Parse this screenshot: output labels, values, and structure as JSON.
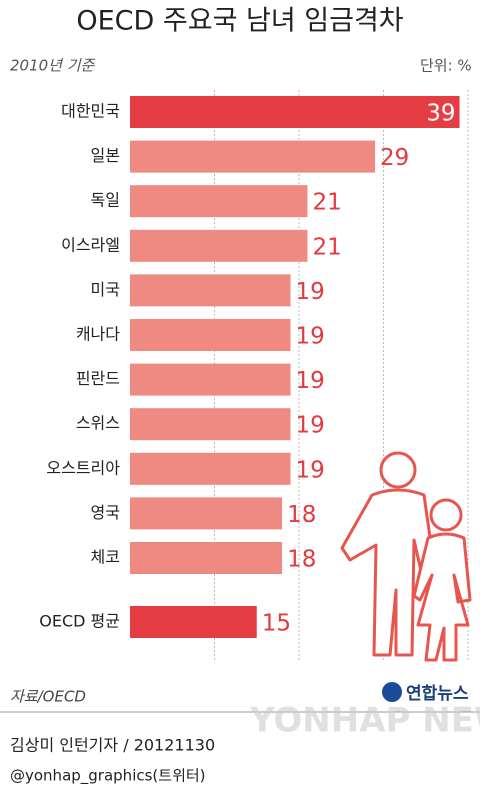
{
  "chart_data": {
    "type": "bar",
    "orientation": "horizontal",
    "title": "OECD 주요국 남녀 임금격차",
    "subtitle": "2010년 기준",
    "unit": "단위: %",
    "categories": [
      "대한민국",
      "일본",
      "독일",
      "이스라엘",
      "미국",
      "캐나다",
      "핀란드",
      "스위스",
      "오스트리아",
      "영국",
      "체코",
      "OECD 평균"
    ],
    "values": [
      39,
      29,
      21,
      21,
      19,
      19,
      19,
      19,
      19,
      18,
      18,
      15
    ],
    "colors": [
      "#e43d44",
      "#ee8a82",
      "#ee8a82",
      "#ee8a82",
      "#ee8a82",
      "#ee8a82",
      "#ee8a82",
      "#ee8a82",
      "#ee8a82",
      "#ee8a82",
      "#ee8a82",
      "#e43d44"
    ],
    "xlim": [
      0,
      40
    ],
    "xticks": [
      10,
      20,
      30,
      40
    ],
    "grid": true,
    "source": "자료/OECD",
    "logo": "연합뉴스",
    "watermark": "YONHAP NEWS",
    "credit": "김상미 인턴기자 / 20121130",
    "twitter": "@yonhap_graphics(트위터)"
  }
}
